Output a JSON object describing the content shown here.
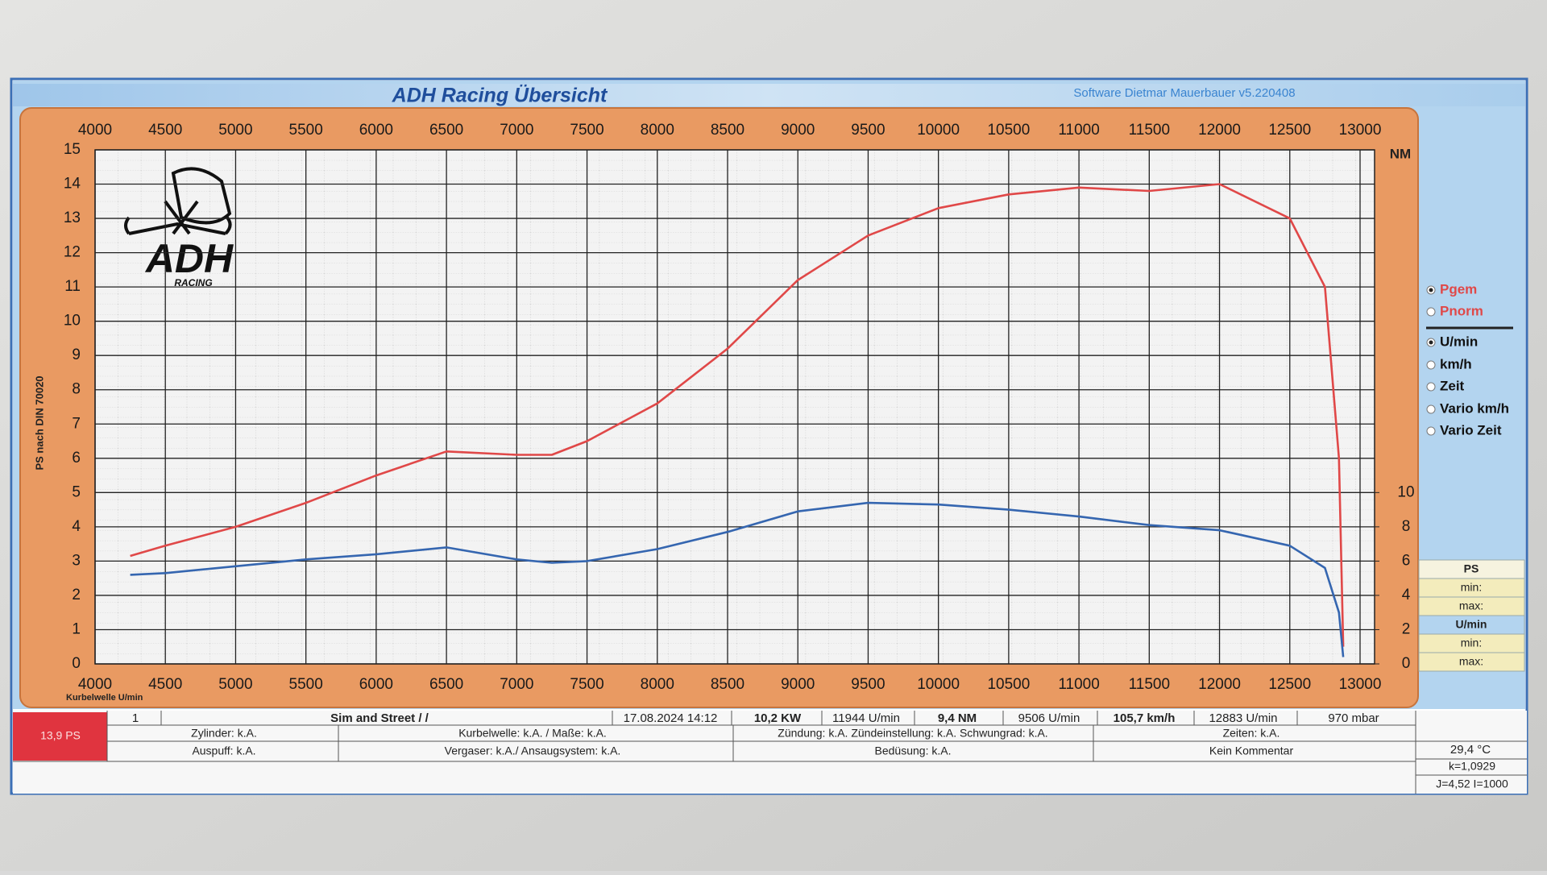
{
  "chart_data": {
    "type": "line",
    "title": "ADH Racing  Übersicht",
    "subtitle": "Software Dietmar Mauerbauer v5.220408",
    "x_label": "Kurbelwelle U/min",
    "y_label": "PS nach DIN 70020",
    "y2_label": "NM",
    "x": [
      4250,
      4500,
      5000,
      5500,
      6000,
      6500,
      7000,
      7250,
      7500,
      8000,
      8500,
      9000,
      9500,
      10000,
      10500,
      11000,
      11500,
      12000,
      12500,
      12750,
      12850,
      12880
    ],
    "series": [
      {
        "name": "Pgem",
        "color": "#e04848",
        "values": [
          3.15,
          3.45,
          4.0,
          4.7,
          5.5,
          6.2,
          6.1,
          6.1,
          6.5,
          7.6,
          9.2,
          11.2,
          12.5,
          13.3,
          13.7,
          13.9,
          13.8,
          14.0,
          13.0,
          11.0,
          6.0,
          0.5
        ]
      },
      {
        "name": "NM",
        "color": "#3566b0",
        "axis": "y2",
        "values": [
          5.2,
          5.3,
          5.7,
          6.1,
          6.4,
          6.8,
          6.1,
          5.9,
          6.0,
          6.7,
          7.7,
          8.9,
          9.4,
          9.3,
          9.0,
          8.6,
          8.1,
          7.8,
          6.9,
          5.6,
          3.0,
          0.4
        ]
      }
    ],
    "xlim": [
      4000,
      13000
    ],
    "xticks": [
      4000,
      4500,
      5000,
      5500,
      6000,
      6500,
      7000,
      7500,
      8000,
      8500,
      9000,
      9500,
      10000,
      10500,
      11000,
      11500,
      12000,
      12500,
      13000
    ],
    "ylim": [
      0,
      15
    ],
    "yticks": [
      0,
      1,
      2,
      3,
      4,
      5,
      6,
      7,
      8,
      9,
      10,
      11,
      12,
      13,
      14,
      15
    ],
    "y2lim": [
      0,
      30
    ],
    "y2ticks": [
      0,
      2,
      4,
      6,
      8,
      10
    ],
    "grid": true
  },
  "logo": {
    "text": "ADH",
    "subtext": "RACING"
  },
  "controls": {
    "options": [
      {
        "label": "Pgem",
        "checked": true,
        "color": "#e04848"
      },
      {
        "label": "Pnorm",
        "checked": false,
        "color": "#e04848"
      },
      {
        "label": "U/min",
        "checked": true,
        "color": "#111111"
      },
      {
        "label": "km/h",
        "checked": false,
        "color": "#111111"
      },
      {
        "label": "Zeit",
        "checked": false,
        "color": "#111111"
      },
      {
        "label": "Vario km/h",
        "checked": false,
        "color": "#111111"
      },
      {
        "label": "Vario Zeit",
        "checked": false,
        "color": "#111111"
      }
    ],
    "range_box": [
      "PS",
      "min:",
      "max:",
      "U/min",
      "min:",
      "max:"
    ]
  },
  "summary": {
    "badge": "13,9 PS",
    "row1": [
      "1",
      "Sim and Street / /",
      "17.08.2024 14:12",
      "10,2  KW",
      "11944  U/min",
      "9,4  NM",
      "9506  U/min",
      "105,7 km/h",
      "12883  U/min",
      "970  mbar",
      "29,4 °C"
    ],
    "row2": [
      "Zylinder: k.A.",
      "Kurbelwelle: k.A. / Maße: k.A.",
      "Zündung: k.A.  Zündeinstellung: k.A. Schwungrad: k.A.",
      "Zeiten: k.A.",
      "k=1,0929"
    ],
    "row3": [
      "Auspuff: k.A.",
      "Vergaser: k.A./ Ansaugsystem: k.A.",
      "Bedüsung: k.A.",
      "Kein Kommentar",
      "J=4,52 I=1000"
    ]
  }
}
